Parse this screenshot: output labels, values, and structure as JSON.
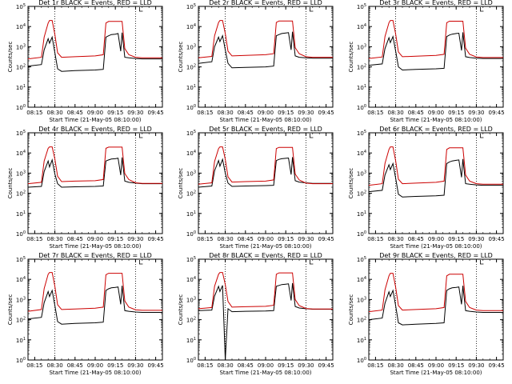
{
  "figure": {
    "colors": {
      "events": "#000000",
      "lld": "#cc0000",
      "axes": "#000000",
      "background": "#ffffff"
    }
  },
  "chart_data": [
    {
      "type": "line",
      "title": "Det 1r BLACK = Events, RED = LLD",
      "xlabel": "Start Time (21-May-05 08:10:00)",
      "ylabel": "Counts/sec",
      "x_ticks": [
        "08:15",
        "08:30",
        "08:45",
        "09:00",
        "09:15",
        "09:30",
        "09:45"
      ],
      "y_ticks": [
        "10^0",
        "10^1",
        "10^2",
        "10^3",
        "10^4",
        "10^5"
      ],
      "y_scale": "log",
      "ylim": [
        1,
        100000
      ],
      "xlim": [
        "08:10",
        "09:50"
      ],
      "vlines": [
        "08:30",
        "09:30"
      ],
      "marker_top": "09:33",
      "x": [
        "08:10",
        "08:20",
        "08:22",
        "08:25",
        "08:26",
        "08:28",
        "08:30",
        "08:32",
        "08:35",
        "08:45",
        "09:00",
        "09:06",
        "09:08",
        "09:10",
        "09:12",
        "09:15",
        "09:17",
        "09:19",
        "09:20",
        "09:22",
        "09:25",
        "09:30",
        "09:35",
        "09:50"
      ],
      "series": [
        {
          "name": "Events",
          "values": [
            110,
            130,
            700,
            2500,
            1500,
            3000,
            500,
            80,
            60,
            65,
            70,
            75,
            3000,
            3500,
            4000,
            4200,
            4500,
            600,
            5000,
            300,
            280,
            260,
            250,
            250
          ]
        },
        {
          "name": "LLD",
          "values": [
            250,
            300,
            3000,
            15000,
            20000,
            20000,
            4000,
            500,
            300,
            320,
            350,
            400,
            15000,
            18000,
            18000,
            18000,
            18000,
            18000,
            18000,
            800,
            400,
            300,
            280,
            280
          ]
        }
      ]
    },
    {
      "type": "line",
      "title": "Det 2r BLACK = Events, RED = LLD",
      "xlabel": "Start Time (21-May-05 08:10:00)",
      "ylabel": "Counts/sec",
      "x_ticks": [
        "08:15",
        "08:30",
        "08:45",
        "09:00",
        "09:15",
        "09:30",
        "09:45"
      ],
      "y_ticks": [
        "10^0",
        "10^1",
        "10^2",
        "10^3",
        "10^4",
        "10^5"
      ],
      "y_scale": "log",
      "ylim": [
        1,
        100000
      ],
      "xlim": [
        "08:10",
        "09:50"
      ],
      "vlines": [
        "08:30",
        "09:30"
      ],
      "marker_top": "09:33",
      "x": [
        "08:10",
        "08:20",
        "08:22",
        "08:25",
        "08:26",
        "08:28",
        "08:30",
        "08:32",
        "08:35",
        "08:45",
        "09:00",
        "09:06",
        "09:08",
        "09:10",
        "09:12",
        "09:15",
        "09:17",
        "09:19",
        "09:20",
        "09:22",
        "09:25",
        "09:30",
        "09:35",
        "09:50"
      ],
      "series": [
        {
          "name": "Events",
          "values": [
            150,
            180,
            1000,
            3000,
            1800,
            3500,
            700,
            150,
            90,
            95,
            100,
            110,
            3500,
            4000,
            4500,
            4800,
            5000,
            700,
            5500,
            350,
            300,
            280,
            270,
            270
          ]
        },
        {
          "name": "LLD",
          "values": [
            280,
            330,
            3500,
            16000,
            20000,
            20000,
            4500,
            600,
            350,
            370,
            400,
            450,
            16000,
            19000,
            19000,
            19000,
            19000,
            19000,
            19000,
            900,
            450,
            320,
            300,
            300
          ]
        }
      ]
    },
    {
      "type": "line",
      "title": "Det 3r BLACK = Events, RED = LLD",
      "xlabel": "Start Time (21-May-05 08:10:00)",
      "ylabel": "Counts/sec",
      "x_ticks": [
        "08:15",
        "08:30",
        "08:45",
        "09:00",
        "09:15",
        "09:30",
        "09:45"
      ],
      "y_ticks": [
        "10^0",
        "10^1",
        "10^2",
        "10^3",
        "10^4",
        "10^5"
      ],
      "y_scale": "log",
      "ylim": [
        1,
        100000
      ],
      "xlim": [
        "08:10",
        "09:50"
      ],
      "vlines": [
        "08:30",
        "09:30"
      ],
      "marker_top": "09:33",
      "x": [
        "08:10",
        "08:20",
        "08:22",
        "08:25",
        "08:26",
        "08:28",
        "08:30",
        "08:32",
        "08:35",
        "08:45",
        "09:00",
        "09:06",
        "09:08",
        "09:10",
        "09:12",
        "09:15",
        "09:17",
        "09:19",
        "09:20",
        "09:22",
        "09:25",
        "09:30",
        "09:35",
        "09:50"
      ],
      "series": [
        {
          "name": "Events",
          "values": [
            120,
            140,
            800,
            2800,
            1600,
            3200,
            600,
            100,
            70,
            75,
            80,
            85,
            3200,
            3800,
            4200,
            4500,
            4700,
            650,
            5200,
            320,
            290,
            270,
            260,
            260
          ]
        },
        {
          "name": "LLD",
          "values": [
            260,
            310,
            3200,
            15500,
            20000,
            20000,
            4200,
            550,
            320,
            340,
            370,
            420,
            15500,
            18500,
            18500,
            18500,
            18500,
            18500,
            18500,
            850,
            420,
            310,
            290,
            290
          ]
        }
      ]
    },
    {
      "type": "line",
      "title": "Det 4r BLACK = Events, RED = LLD",
      "xlabel": "Start Time (21-May-05 08:10:00)",
      "ylabel": "Counts/sec",
      "x_ticks": [
        "08:15",
        "08:30",
        "08:45",
        "09:00",
        "09:15",
        "09:30",
        "09:45"
      ],
      "y_ticks": [
        "10^0",
        "10^1",
        "10^2",
        "10^3",
        "10^4",
        "10^5"
      ],
      "y_scale": "log",
      "ylim": [
        1,
        100000
      ],
      "xlim": [
        "08:10",
        "09:50"
      ],
      "vlines": [
        "08:30",
        "09:30"
      ],
      "marker_top": "09:33",
      "x": [
        "08:10",
        "08:20",
        "08:22",
        "08:25",
        "08:26",
        "08:28",
        "08:30",
        "08:32",
        "08:35",
        "08:45",
        "09:00",
        "09:06",
        "09:08",
        "09:10",
        "09:12",
        "09:15",
        "09:17",
        "09:19",
        "09:20",
        "09:22",
        "09:25",
        "09:30",
        "09:35",
        "09:50"
      ],
      "series": [
        {
          "name": "Events",
          "values": [
            200,
            220,
            1200,
            4000,
            2000,
            4500,
            900,
            300,
            200,
            210,
            220,
            230,
            4000,
            4500,
            5000,
            5200,
            5500,
            800,
            6000,
            400,
            350,
            320,
            300,
            300
          ]
        },
        {
          "name": "LLD",
          "values": [
            300,
            350,
            4000,
            17000,
            20000,
            20000,
            5000,
            700,
            380,
            400,
            420,
            480,
            17000,
            19500,
            19500,
            19500,
            19500,
            19500,
            19500,
            950,
            480,
            330,
            310,
            310
          ]
        }
      ]
    },
    {
      "type": "line",
      "title": "Det 5r BLACK = Events, RED = LLD",
      "xlabel": "Start Time (21-May-05 08:10:00)",
      "ylabel": "Counts/sec",
      "x_ticks": [
        "08:15",
        "08:30",
        "08:45",
        "09:00",
        "09:15",
        "09:30",
        "09:45"
      ],
      "y_ticks": [
        "10^0",
        "10^1",
        "10^2",
        "10^3",
        "10^4",
        "10^5"
      ],
      "y_scale": "log",
      "ylim": [
        1,
        100000
      ],
      "xlim": [
        "08:10",
        "09:50"
      ],
      "vlines": [
        "08:30",
        "09:30"
      ],
      "marker_top": "09:33",
      "x": [
        "08:10",
        "08:20",
        "08:22",
        "08:25",
        "08:26",
        "08:28",
        "08:30",
        "08:32",
        "08:35",
        "08:45",
        "09:00",
        "09:06",
        "09:08",
        "09:10",
        "09:12",
        "09:15",
        "09:17",
        "09:19",
        "09:20",
        "09:22",
        "09:25",
        "09:30",
        "09:35",
        "09:50"
      ],
      "series": [
        {
          "name": "Events",
          "values": [
            200,
            230,
            1300,
            4200,
            2200,
            4800,
            1000,
            320,
            220,
            230,
            240,
            250,
            4200,
            4800,
            5200,
            5400,
            5600,
            850,
            6200,
            420,
            360,
            330,
            310,
            310
          ]
        },
        {
          "name": "LLD",
          "values": [
            280,
            330,
            3800,
            16500,
            20000,
            20000,
            4800,
            650,
            360,
            380,
            400,
            460,
            16500,
            19000,
            19000,
            19000,
            19000,
            19000,
            19000,
            900,
            460,
            320,
            300,
            300
          ]
        }
      ]
    },
    {
      "type": "line",
      "title": "Det 6r BLACK = Events, RED = LLD",
      "xlabel": "Start Time (21-May-05 08:10:00)",
      "ylabel": "Counts/sec",
      "x_ticks": [
        "08:15",
        "08:30",
        "08:45",
        "09:00",
        "09:15",
        "09:30",
        "09:45"
      ],
      "y_ticks": [
        "10^0",
        "10^1",
        "10^2",
        "10^3",
        "10^4",
        "10^5"
      ],
      "y_scale": "log",
      "ylim": [
        1,
        100000
      ],
      "xlim": [
        "08:10",
        "09:50"
      ],
      "vlines": [
        "08:30",
        "09:30"
      ],
      "marker_top": "09:33",
      "x": [
        "08:10",
        "08:20",
        "08:22",
        "08:25",
        "08:26",
        "08:28",
        "08:30",
        "08:32",
        "08:35",
        "08:45",
        "09:00",
        "09:06",
        "09:08",
        "09:10",
        "09:12",
        "09:15",
        "09:17",
        "09:19",
        "09:20",
        "09:22",
        "09:25",
        "09:30",
        "09:35",
        "09:50"
      ],
      "series": [
        {
          "name": "Events",
          "values": [
            120,
            140,
            800,
            2600,
            1500,
            3000,
            550,
            90,
            65,
            70,
            75,
            80,
            3000,
            3600,
            4000,
            4300,
            4500,
            620,
            5000,
            300,
            280,
            260,
            250,
            250
          ]
        },
        {
          "name": "LLD",
          "values": [
            250,
            300,
            3000,
            15000,
            20000,
            20000,
            4000,
            500,
            300,
            320,
            350,
            400,
            15000,
            18000,
            18000,
            18000,
            18000,
            18000,
            18000,
            800,
            400,
            300,
            280,
            280
          ]
        }
      ]
    },
    {
      "type": "line",
      "title": "Det 7r BLACK = Events, RED = LLD",
      "xlabel": "Start Time (21-May-05 08:10:00)",
      "ylabel": "Counts/sec",
      "x_ticks": [
        "08:15",
        "08:30",
        "08:45",
        "09:00",
        "09:15",
        "09:30",
        "09:45"
      ],
      "y_ticks": [
        "10^0",
        "10^1",
        "10^2",
        "10^3",
        "10^4",
        "10^5"
      ],
      "y_scale": "log",
      "ylim": [
        1,
        100000
      ],
      "xlim": [
        "08:10",
        "09:50"
      ],
      "vlines": [
        "08:30",
        "09:30"
      ],
      "marker_top": "09:33",
      "x": [
        "08:10",
        "08:20",
        "08:22",
        "08:25",
        "08:26",
        "08:28",
        "08:30",
        "08:32",
        "08:35",
        "08:45",
        "09:00",
        "09:06",
        "09:08",
        "09:10",
        "09:12",
        "09:15",
        "09:17",
        "09:19",
        "09:20",
        "09:22",
        "09:25",
        "09:30",
        "09:35",
        "09:50"
      ],
      "series": [
        {
          "name": "Events",
          "values": [
            110,
            130,
            700,
            2500,
            1400,
            2800,
            500,
            80,
            60,
            65,
            70,
            75,
            2800,
            3400,
            3800,
            4000,
            4200,
            580,
            4800,
            280,
            260,
            240,
            230,
            230
          ]
        },
        {
          "name": "LLD",
          "values": [
            260,
            320,
            3500,
            18000,
            22000,
            22000,
            4500,
            550,
            320,
            340,
            370,
            420,
            17000,
            20000,
            20000,
            20000,
            20000,
            20000,
            20000,
            850,
            420,
            310,
            290,
            290
          ]
        }
      ]
    },
    {
      "type": "line",
      "title": "Det 8r BLACK = Events, RED = LLD",
      "xlabel": "Start Time (21-May-05 08:10:00)",
      "ylabel": "Counts/sec",
      "x_ticks": [
        "08:15",
        "08:30",
        "08:45",
        "09:00",
        "09:15",
        "09:30",
        "09:45"
      ],
      "y_ticks": [
        "10^0",
        "10^1",
        "10^2",
        "10^3",
        "10^4",
        "10^5"
      ],
      "y_scale": "log",
      "ylim": [
        1,
        100000
      ],
      "xlim": [
        "08:10",
        "09:50"
      ],
      "vlines": [
        "08:30",
        "09:30"
      ],
      "marker_top": "09:33",
      "x": [
        "08:10",
        "08:20",
        "08:22",
        "08:25",
        "08:26",
        "08:28",
        "08:30",
        "08:32",
        "08:35",
        "08:45",
        "09:00",
        "09:06",
        "09:08",
        "09:10",
        "09:12",
        "09:15",
        "09:17",
        "09:19",
        "09:20",
        "09:22",
        "09:25",
        "09:30",
        "09:35",
        "09:50"
      ],
      "series": [
        {
          "name": "Events",
          "values": [
            280,
            300,
            1500,
            4500,
            2500,
            5000,
            1,
            350,
            250,
            260,
            270,
            280,
            4500,
            5000,
            5500,
            5800,
            6000,
            900,
            6500,
            450,
            380,
            350,
            330,
            330
          ]
        },
        {
          "name": "LLD",
          "values": [
            350,
            400,
            4500,
            18000,
            22000,
            22000,
            5500,
            800,
            420,
            440,
            460,
            520,
            18000,
            21000,
            21000,
            21000,
            21000,
            21000,
            21000,
            1000,
            500,
            360,
            340,
            340
          ]
        }
      ]
    },
    {
      "type": "line",
      "title": "Det 9r BLACK = Events, RED = LLD",
      "xlabel": "Start Time (21-May-05 08:10:00)",
      "ylabel": "Counts/sec",
      "x_ticks": [
        "08:15",
        "08:30",
        "08:45",
        "09:00",
        "09:15",
        "09:30",
        "09:45"
      ],
      "y_ticks": [
        "10^0",
        "10^1",
        "10^2",
        "10^3",
        "10^4",
        "10^5"
      ],
      "y_scale": "log",
      "ylim": [
        1,
        100000
      ],
      "xlim": [
        "08:10",
        "09:50"
      ],
      "vlines": [
        "08:30",
        "09:30"
      ],
      "marker_top": "09:33",
      "x": [
        "08:10",
        "08:20",
        "08:22",
        "08:25",
        "08:26",
        "08:28",
        "08:30",
        "08:32",
        "08:35",
        "08:45",
        "09:00",
        "09:06",
        "09:08",
        "09:10",
        "09:12",
        "09:15",
        "09:17",
        "09:19",
        "09:20",
        "09:22",
        "09:25",
        "09:30",
        "09:35",
        "09:50"
      ],
      "series": [
        {
          "name": "Events",
          "values": [
            100,
            120,
            650,
            2400,
            1400,
            2800,
            480,
            70,
            55,
            60,
            65,
            70,
            2800,
            3400,
            3800,
            4000,
            4200,
            580,
            4800,
            280,
            260,
            240,
            230,
            230
          ]
        },
        {
          "name": "LLD",
          "values": [
            250,
            300,
            3000,
            15000,
            20000,
            20000,
            4000,
            500,
            300,
            320,
            350,
            400,
            15000,
            18000,
            18000,
            18000,
            18000,
            18000,
            18000,
            800,
            400,
            300,
            280,
            280
          ]
        }
      ]
    }
  ]
}
